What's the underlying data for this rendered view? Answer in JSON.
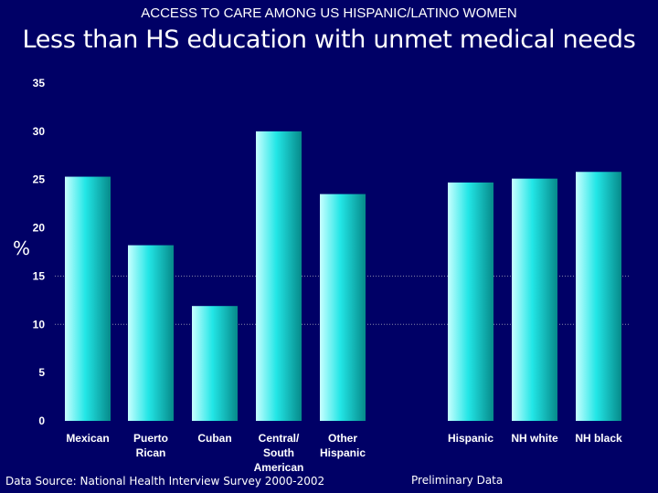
{
  "slide": {
    "supertitle": "ACCESS TO CARE AMONG US HISPANIC/LATINO WOMEN",
    "title": "Less than HS education with unmet medical needs",
    "data_source": "Data Source:  National Health Interview Survey 2000-2002",
    "note": "Preliminary Data"
  },
  "chart_data": {
    "type": "bar",
    "ylabel": "%",
    "ylim": [
      0,
      35
    ],
    "yticks": [
      "0",
      "5",
      "10",
      "15",
      "20",
      "25",
      "30",
      "35"
    ],
    "categories": [
      [
        "Mexican"
      ],
      [
        "Puerto",
        "Rican"
      ],
      [
        "Cuban"
      ],
      [
        "Central/",
        "South",
        "American"
      ],
      [
        "Other",
        "Hispanic"
      ],
      [
        "Hispanic"
      ],
      [
        "NH white"
      ],
      [
        "NH black"
      ]
    ],
    "values": [
      25.3,
      18.2,
      11.9,
      30.0,
      23.5,
      24.7,
      25.1,
      25.8
    ],
    "gridlines": [
      10,
      15
    ],
    "colors": {
      "bar_light": "#c8ffff",
      "bar_mid": "#22e6e6",
      "bar_dark": "#068a8a",
      "background": "#000066"
    }
  }
}
